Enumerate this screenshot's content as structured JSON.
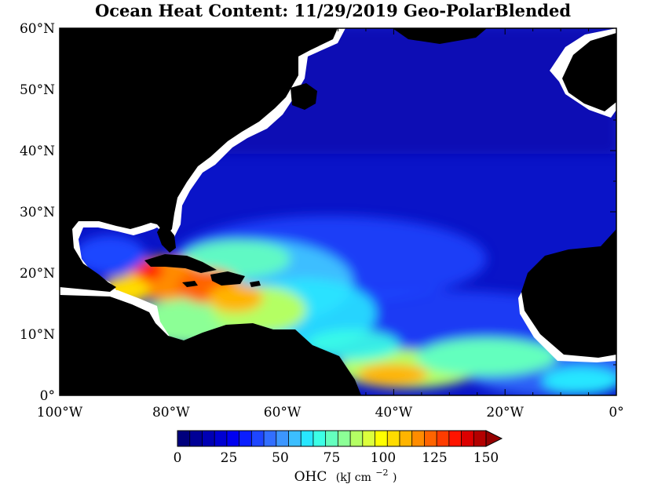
{
  "title": "Ocean Heat Content: 11/29/2019 Geo-PolarBlended",
  "map": {
    "lon_range": [
      -100,
      0
    ],
    "lat_range": [
      0,
      60
    ],
    "x_ticks": [
      {
        "value": -100,
        "label": "100°W"
      },
      {
        "value": -80,
        "label": "80°W"
      },
      {
        "value": -60,
        "label": "60°W"
      },
      {
        "value": -40,
        "label": "40°W"
      },
      {
        "value": -20,
        "label": "20°W"
      },
      {
        "value": 0,
        "label": "0°"
      }
    ],
    "y_ticks": [
      {
        "value": 0,
        "label": "0°"
      },
      {
        "value": 10,
        "label": "10°N"
      },
      {
        "value": 20,
        "label": "20°N"
      },
      {
        "value": 30,
        "label": "30°N"
      },
      {
        "value": 40,
        "label": "40°N"
      },
      {
        "value": 50,
        "label": "50°N"
      },
      {
        "value": 60,
        "label": "60°N"
      }
    ],
    "colors": {
      "land": "#000000",
      "no_data": "#ffffff",
      "ocean_base": "#0a14c8"
    }
  },
  "colorbar": {
    "min": 0,
    "max": 150,
    "step": 5,
    "tick_labels": [
      "0",
      "25",
      "50",
      "75",
      "100",
      "125",
      "150"
    ],
    "tick_values": [
      0,
      25,
      50,
      75,
      100,
      125,
      150
    ],
    "label_main": "OHC",
    "label_units": "(kJ cm",
    "label_exp": "−2",
    "label_close": ")",
    "extend": "max",
    "colors": [
      "#00007d",
      "#000096",
      "#0000b4",
      "#0000d2",
      "#0000f0",
      "#0a1eff",
      "#1e46ff",
      "#326eff",
      "#3c96ff",
      "#3cbeff",
      "#28e6ff",
      "#3cffe6",
      "#64ffbe",
      "#8cff96",
      "#b4ff64",
      "#dcff3c",
      "#ffff00",
      "#ffdc00",
      "#ffb400",
      "#ff8c00",
      "#ff6400",
      "#ff3c00",
      "#ff1400",
      "#dc0000",
      "#b40000",
      "#960000"
    ]
  }
}
